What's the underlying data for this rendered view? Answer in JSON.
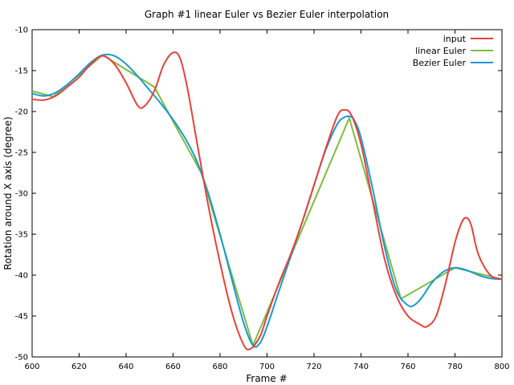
{
  "chart_data": {
    "type": "line",
    "title": "Graph #1 linear Euler vs Bezier Euler interpolation",
    "xlabel": "Frame #",
    "ylabel": "Rotation around X axis (degree)",
    "xlim": [
      600,
      800
    ],
    "ylim": [
      -50,
      -10
    ],
    "xticks": [
      "600",
      "620",
      "640",
      "660",
      "680",
      "700",
      "720",
      "740",
      "760",
      "780",
      "800"
    ],
    "yticks": [
      "-10",
      "-15",
      "-20",
      "-25",
      "-30",
      "-35",
      "-40",
      "-45",
      "-50"
    ],
    "legend_position": "top-right",
    "grid": false,
    "series": [
      {
        "name": "input",
        "color": "#e8413a",
        "x": [
          600,
          605,
          610,
          615,
          620,
          625,
          630,
          635,
          640,
          645,
          648,
          652,
          656,
          660,
          663,
          666,
          670,
          675,
          680,
          685,
          690,
          693,
          697,
          700,
          705,
          710,
          715,
          720,
          725,
          730,
          733,
          736,
          740,
          745,
          750,
          755,
          760,
          765,
          768,
          772,
          776,
          780,
          783,
          785,
          787,
          790,
          795,
          800
        ],
        "y": [
          -18.5,
          -18.6,
          -18.1,
          -17.0,
          -15.8,
          -14.2,
          -13.2,
          -14.2,
          -16.5,
          -19.3,
          -19.3,
          -17.5,
          -14.3,
          -12.8,
          -13.5,
          -17.0,
          -23.5,
          -31.5,
          -38.5,
          -44.5,
          -48.5,
          -49.0,
          -47.5,
          -45.0,
          -41.0,
          -37.5,
          -33.5,
          -29.0,
          -24.5,
          -20.5,
          -19.8,
          -20.5,
          -24.0,
          -31.0,
          -38.0,
          -42.5,
          -45.0,
          -46.0,
          -46.3,
          -45.0,
          -41.0,
          -36.0,
          -33.5,
          -33.0,
          -34.0,
          -37.5,
          -40.0,
          -40.5
        ]
      },
      {
        "name": "linear Euler",
        "color": "#7cbd3d",
        "x": [
          600,
          609,
          630,
          652,
          672,
          694,
          735,
          757,
          780,
          800
        ],
        "y": [
          -17.5,
          -18.2,
          -13.1,
          -17.0,
          -27.5,
          -48.6,
          -20.8,
          -42.9,
          -39.1,
          -40.5
        ]
      },
      {
        "name": "Bezier Euler",
        "color": "#1a9ad6",
        "x": [
          600,
          605,
          610,
          615,
          620,
          625,
          630,
          635,
          640,
          645,
          650,
          655,
          660,
          665,
          670,
          675,
          680,
          685,
          690,
          694,
          697,
          700,
          705,
          710,
          715,
          720,
          725,
          730,
          733,
          735,
          737,
          740,
          745,
          750,
          755,
          760,
          763,
          766,
          770,
          775,
          780,
          785,
          790,
          795,
          800
        ],
        "y": [
          -17.8,
          -18.1,
          -17.7,
          -16.7,
          -15.4,
          -14.0,
          -13.1,
          -13.2,
          -14.2,
          -15.7,
          -17.4,
          -19.1,
          -21.0,
          -23.2,
          -26.0,
          -30.0,
          -35.0,
          -40.5,
          -45.8,
          -48.6,
          -48.3,
          -46.3,
          -42.0,
          -37.8,
          -33.5,
          -29.0,
          -24.7,
          -21.5,
          -20.7,
          -20.6,
          -21.0,
          -23.2,
          -29.5,
          -36.5,
          -41.8,
          -43.7,
          -43.6,
          -42.7,
          -41.0,
          -39.6,
          -39.1,
          -39.4,
          -40.0,
          -40.4,
          -40.5
        ]
      }
    ]
  }
}
